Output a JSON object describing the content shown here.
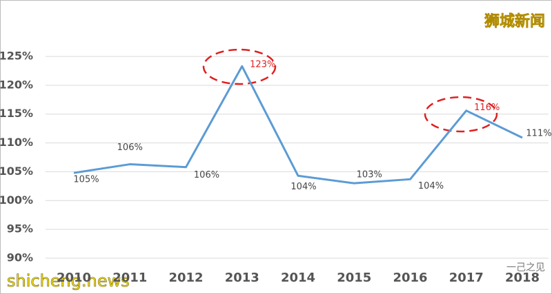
{
  "chart_data": {
    "type": "line",
    "categories": [
      "2010",
      "2011",
      "2012",
      "2013",
      "2014",
      "2015",
      "2016",
      "2017",
      "2018"
    ],
    "series": [
      {
        "name": null,
        "color": "#5b9bd5",
        "values": [
          104.8,
          106.3,
          105.8,
          123.3,
          104.3,
          103.0,
          103.7,
          115.6,
          110.9
        ],
        "value_labels": [
          "105%",
          "106%",
          "106%",
          "123%",
          "104%",
          "103%",
          "104%",
          "116%",
          "111%"
        ],
        "value_label_colors": [
          "#444444",
          "#444444",
          "#444444",
          "#e02020",
          "#444444",
          "#444444",
          "#444444",
          "#e02020",
          "#444444"
        ]
      }
    ],
    "ylim": [
      90,
      125
    ],
    "yticks": [
      {
        "value": 90,
        "label": "90%"
      },
      {
        "value": 95,
        "label": "95%"
      },
      {
        "value": 100,
        "label": "100%"
      },
      {
        "value": 105,
        "label": "105%"
      },
      {
        "value": 110,
        "label": "110%"
      },
      {
        "value": 115,
        "label": "115%"
      },
      {
        "value": 120,
        "label": "120%"
      },
      {
        "value": 125,
        "label": "125%"
      }
    ],
    "grid": true
  },
  "watermarks": {
    "top_right": "狮城新闻",
    "bottom_left": "shicheng.news",
    "bottom_right": "一己之见"
  }
}
